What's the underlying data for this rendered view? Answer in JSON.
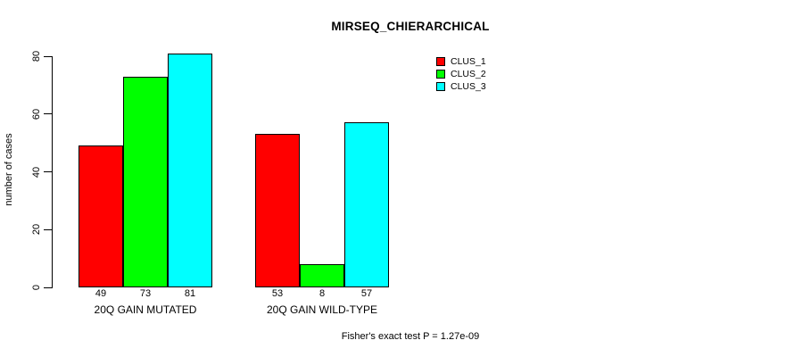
{
  "chart_data": {
    "type": "bar",
    "title": "MIRSEQ_CHIERARCHICAL",
    "xlabel": "",
    "ylabel": "number of cases",
    "annotation": "Fisher's exact test P = 1.27e-09",
    "categories": [
      "20Q GAIN MUTATED",
      "20Q GAIN WILD-TYPE"
    ],
    "series": [
      {
        "name": "CLUS_1",
        "color": "#FF0000",
        "values": [
          49,
          53
        ]
      },
      {
        "name": "CLUS_2",
        "color": "#00FF00",
        "values": [
          73,
          8
        ]
      },
      {
        "name": "CLUS_3",
        "color": "#00FFFF",
        "values": [
          81,
          57
        ]
      }
    ],
    "ylim": [
      0,
      80
    ],
    "yticks": [
      0,
      20,
      40,
      60,
      80
    ],
    "bar_labels": [
      [
        49,
        53
      ],
      [
        73,
        8
      ],
      [
        81,
        57
      ]
    ],
    "grid": false,
    "legend_position": "top-right",
    "bar_border_color": "#000000",
    "background_color": "#FFFFFF",
    "text_color": "#000000"
  }
}
